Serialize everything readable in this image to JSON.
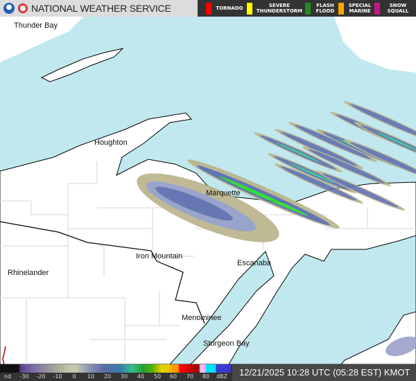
{
  "header": {
    "title": "NATIONAL WEATHER SERVICE",
    "logos": [
      "noaa-logo",
      "nws-logo"
    ],
    "warning_legend": [
      {
        "label": "TORNADO",
        "color": "#ff0000"
      },
      {
        "label": "SEVERE THUNDERSTORM",
        "color": "#ffff00"
      },
      {
        "label": "FLASH FLOOD",
        "color": "#228b22"
      },
      {
        "label": "SPECIAL MARINE",
        "color": "#ffa500"
      },
      {
        "label": "SNOW SQUALL",
        "color": "#c71585"
      }
    ]
  },
  "map": {
    "cities": [
      "Thunder Bay",
      "Houghton",
      "Marquette",
      "Iron Mountain",
      "Escanaba",
      "Rhinelander",
      "Menominee",
      "Sturgeon Bay"
    ],
    "colors": {
      "water": "#c1e8ef",
      "land": "#ffffff",
      "county_border": "#dddddd",
      "state_border": "#000000"
    }
  },
  "legend": {
    "ticks": [
      "nd",
      "-30",
      "-20",
      "-10",
      "0",
      "10",
      "20",
      "30",
      "40",
      "50",
      "60",
      "70",
      "80",
      "dBZ"
    ],
    "timestamp": "12/21/2025 10:28 UTC (05:28 EST) KMOT"
  }
}
